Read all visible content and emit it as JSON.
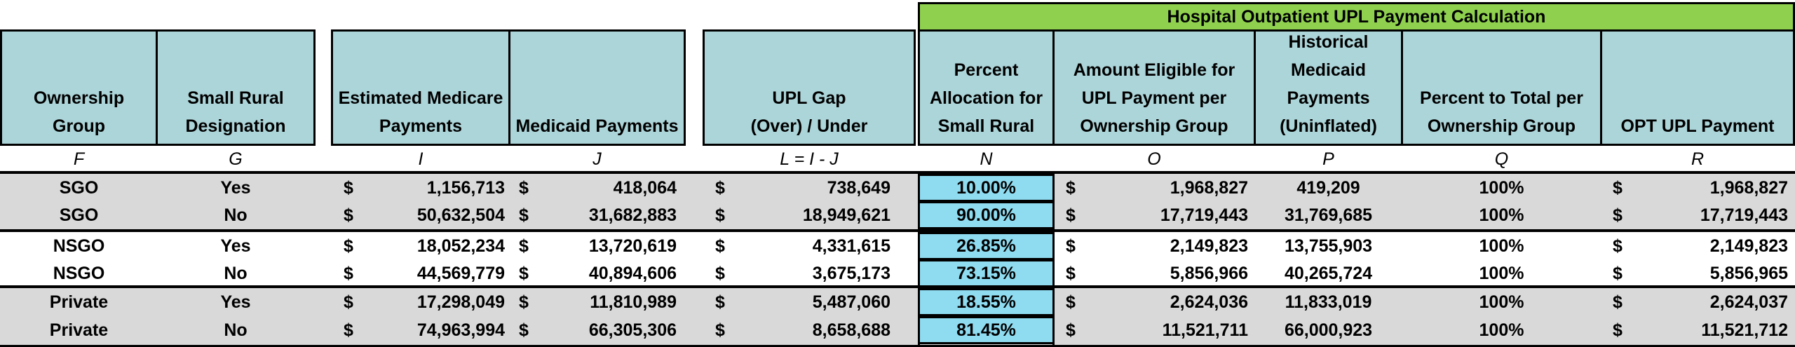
{
  "banner": {
    "title": "Hospital Outpatient UPL Payment Calculation"
  },
  "headers": [
    {
      "key": "F",
      "label": "Ownership\nGroup",
      "formula": "F"
    },
    {
      "key": "G",
      "label": "Small Rural\nDesignation",
      "formula": "G"
    },
    {
      "key": "I",
      "label": "Estimated Medicare\nPayments",
      "formula": "I"
    },
    {
      "key": "J",
      "label": "Medicaid Payments",
      "formula": "J"
    },
    {
      "key": "L",
      "label": "UPL Gap\n(Over) / Under",
      "formula": "L = I - J"
    },
    {
      "key": "N",
      "label": "Percent\nAllocation for\nSmall Rural",
      "formula": "N"
    },
    {
      "key": "O",
      "label": "Amount Eligible for\nUPL Payment per\nOwnership Group",
      "formula": "O"
    },
    {
      "key": "P",
      "label": "Historical\nMedicaid\nPayments\n(Uninflated)",
      "formula": "P"
    },
    {
      "key": "Q",
      "label": "Percent to Total per\nOwnership Group",
      "formula": "Q"
    },
    {
      "key": "R",
      "label": "OPT UPL Payment",
      "formula": "R"
    }
  ],
  "currency_symbol": "$",
  "rows": [
    {
      "group": "SGO",
      "small_rural": "Yes",
      "medicare": "1,156,713",
      "medicaid": "418,064",
      "gap": "738,649",
      "pct_alloc": "10.00%",
      "eligible": "1,968,827",
      "historical": "419,209",
      "pct_total": "100%",
      "opt_upl": "1,968,827"
    },
    {
      "group": "SGO",
      "small_rural": "No",
      "medicare": "50,632,504",
      "medicaid": "31,682,883",
      "gap": "18,949,621",
      "pct_alloc": "90.00%",
      "eligible": "17,719,443",
      "historical": "31,769,685",
      "pct_total": "100%",
      "opt_upl": "17,719,443"
    },
    {
      "group": "NSGO",
      "small_rural": "Yes",
      "medicare": "18,052,234",
      "medicaid": "13,720,619",
      "gap": "4,331,615",
      "pct_alloc": "26.85%",
      "eligible": "2,149,823",
      "historical": "13,755,903",
      "pct_total": "100%",
      "opt_upl": "2,149,823"
    },
    {
      "group": "NSGO",
      "small_rural": "No",
      "medicare": "44,569,779",
      "medicaid": "40,894,606",
      "gap": "3,675,173",
      "pct_alloc": "73.15%",
      "eligible": "5,856,966",
      "historical": "40,265,724",
      "pct_total": "100%",
      "opt_upl": "5,856,965"
    },
    {
      "group": "Private",
      "small_rural": "Yes",
      "medicare": "17,298,049",
      "medicaid": "11,810,989",
      "gap": "5,487,060",
      "pct_alloc": "18.55%",
      "eligible": "2,624,036",
      "historical": "11,833,019",
      "pct_total": "100%",
      "opt_upl": "2,624,037"
    },
    {
      "group": "Private",
      "small_rural": "No",
      "medicare": "74,963,994",
      "medicaid": "66,305,306",
      "gap": "8,658,688",
      "pct_alloc": "81.45%",
      "eligible": "11,521,711",
      "historical": "66,000,923",
      "pct_total": "100%",
      "opt_upl": "11,521,712"
    }
  ],
  "colors": {
    "header_fill": "#acd5d9",
    "banner_fill": "#8fd14f",
    "group_band_fill": "#d9d9d9",
    "percent_cell_fill": "#8fdcf1"
  }
}
